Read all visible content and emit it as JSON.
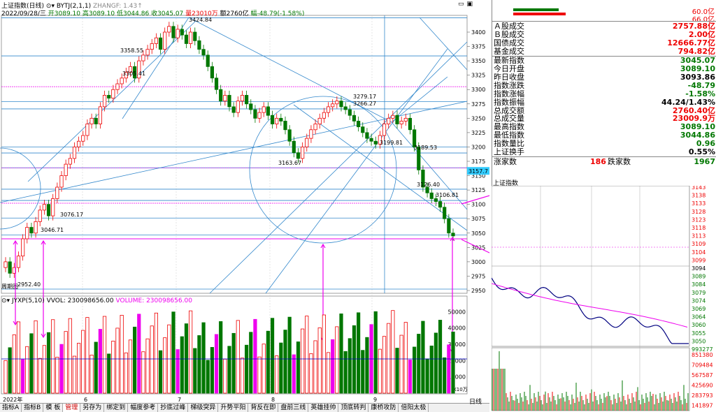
{
  "header": {
    "title": "上证指数(日线)",
    "indicator": "BYTJ(2,1,1)",
    "zhangf": "ZHANGF: 1.43↑",
    "info_prefix": "2022/09/28/三",
    "open": "开3089.10",
    "high": "高3089.10",
    "low": "低3044.86",
    "close": "收3045.07",
    "amount": "量23010万",
    "turnover": "额2760亿",
    "change": "幅-48.79(-1.58%)"
  },
  "price_axis": [
    "3400",
    "3375",
    "3350",
    "3325",
    "3300",
    "3275",
    "3250",
    "3225",
    "3200",
    "3175",
    "3150",
    "3125",
    "3100",
    "3075",
    "3050",
    "3025",
    "3000",
    "2975",
    "2950"
  ],
  "annotations": {
    "high_label": "3424.84",
    "a1": "3358.55",
    "a2": "3305.41",
    "a3": "3279.17",
    "a4": "3266.27",
    "a5": "3199.81",
    "a6": "3189.53",
    "a7": "3163.67",
    "a8": "3126.40",
    "a9": "3106.81",
    "a10": "3076.17",
    "a11": "3046.71",
    "a12": "2952.40",
    "current_price": "3157.7",
    "corner_note": "周期图"
  },
  "volume": {
    "label": "JYXP(5,10)",
    "vol_label": "VVOL: 230098656.00",
    "volume_label": "VOLUME: 230098656.00",
    "axis": [
      "50000",
      "40000",
      "30000",
      "20000",
      "10000"
    ],
    "unit": "X10万"
  },
  "date_axis": [
    "2022年",
    "6",
    "7",
    "8",
    "9"
  ],
  "bottom_tabs": [
    "指标A",
    "指标B",
    "模 板",
    "管理",
    "另存为",
    "绑定到",
    "幅度参考",
    "抄底过峰",
    "梯级突异",
    "升势平阳",
    "背反在即",
    "盘前三线",
    "英雄挂帅",
    "顶底转判",
    "康桥攻防",
    "倍阳太极"
  ],
  "bottom_right": "日线",
  "sidebar": {
    "bar1_label": "60.0亿",
    "bar2_label": "66.0亿",
    "rows": [
      {
        "label": "Ａ股成交",
        "value": "2757.88亿",
        "color": "#e00"
      },
      {
        "label": "Ｂ股成交",
        "value": "2.00亿",
        "color": "#e00"
      },
      {
        "label": "国债成交",
        "value": "12666.77亿",
        "color": "#e00"
      },
      {
        "label": "基金成交",
        "value": "794.82亿",
        "color": "#e00"
      },
      {
        "label": "最新指数",
        "value": "3045.07",
        "color": "#070"
      },
      {
        "label": "今日开盘",
        "value": "3089.10",
        "color": "#070"
      },
      {
        "label": "昨日收盘",
        "value": "3093.86",
        "color": "#000"
      },
      {
        "label": "指数涨跌",
        "value": "-48.79",
        "color": "#070"
      },
      {
        "label": "指数涨幅",
        "value": "-1.58%",
        "color": "#070"
      },
      {
        "label": "指数振幅",
        "value": "44.24/1.43%",
        "color": "#000"
      },
      {
        "label": "总成交额",
        "value": "2760.40亿",
        "color": "#e00"
      },
      {
        "label": "总成交量",
        "value": "23009.9万",
        "color": "#e00"
      },
      {
        "label": "最高指数",
        "value": "3089.10",
        "color": "#070"
      },
      {
        "label": "最低指数",
        "value": "3044.86",
        "color": "#070"
      },
      {
        "label": "指数量比",
        "value": "0.96",
        "color": "#070"
      },
      {
        "label": "上证换手",
        "value": "0.55%",
        "color": "#000"
      }
    ],
    "up_label": "涨家数",
    "up_value": "186",
    "down_label": "跌家数",
    "down_value": "1967"
  },
  "intraday": {
    "title": "上证指数",
    "price_axis": [
      {
        "v": "3143",
        "c": "#e00"
      },
      {
        "v": "3138",
        "c": "#e00"
      },
      {
        "v": "3133",
        "c": "#e00"
      },
      {
        "v": "3128",
        "c": "#e00"
      },
      {
        "v": "3123",
        "c": "#e00"
      },
      {
        "v": "3118",
        "c": "#e00"
      },
      {
        "v": "3113",
        "c": "#e00"
      },
      {
        "v": "3109",
        "c": "#e00"
      },
      {
        "v": "3104",
        "c": "#e00"
      },
      {
        "v": "3099",
        "c": "#e00"
      },
      {
        "v": "3094",
        "c": "#000"
      },
      {
        "v": "3089",
        "c": "#070"
      },
      {
        "v": "3084",
        "c": "#070"
      },
      {
        "v": "3079",
        "c": "#070"
      },
      {
        "v": "3074",
        "c": "#070"
      },
      {
        "v": "3069",
        "c": "#070"
      },
      {
        "v": "3064",
        "c": "#070"
      },
      {
        "v": "3060",
        "c": "#070"
      },
      {
        "v": "3055",
        "c": "#070"
      },
      {
        "v": "3050",
        "c": "#070"
      },
      {
        "v": "993277",
        "c": "#070"
      }
    ],
    "vol_axis": [
      "851380",
      "709484",
      "567587",
      "425690",
      "283793",
      "141897"
    ]
  },
  "colors": {
    "up": "#ee0000",
    "down": "#007700",
    "magenta": "#ee00ee",
    "trend": "#3388cc",
    "intraday_line": "#000080"
  }
}
